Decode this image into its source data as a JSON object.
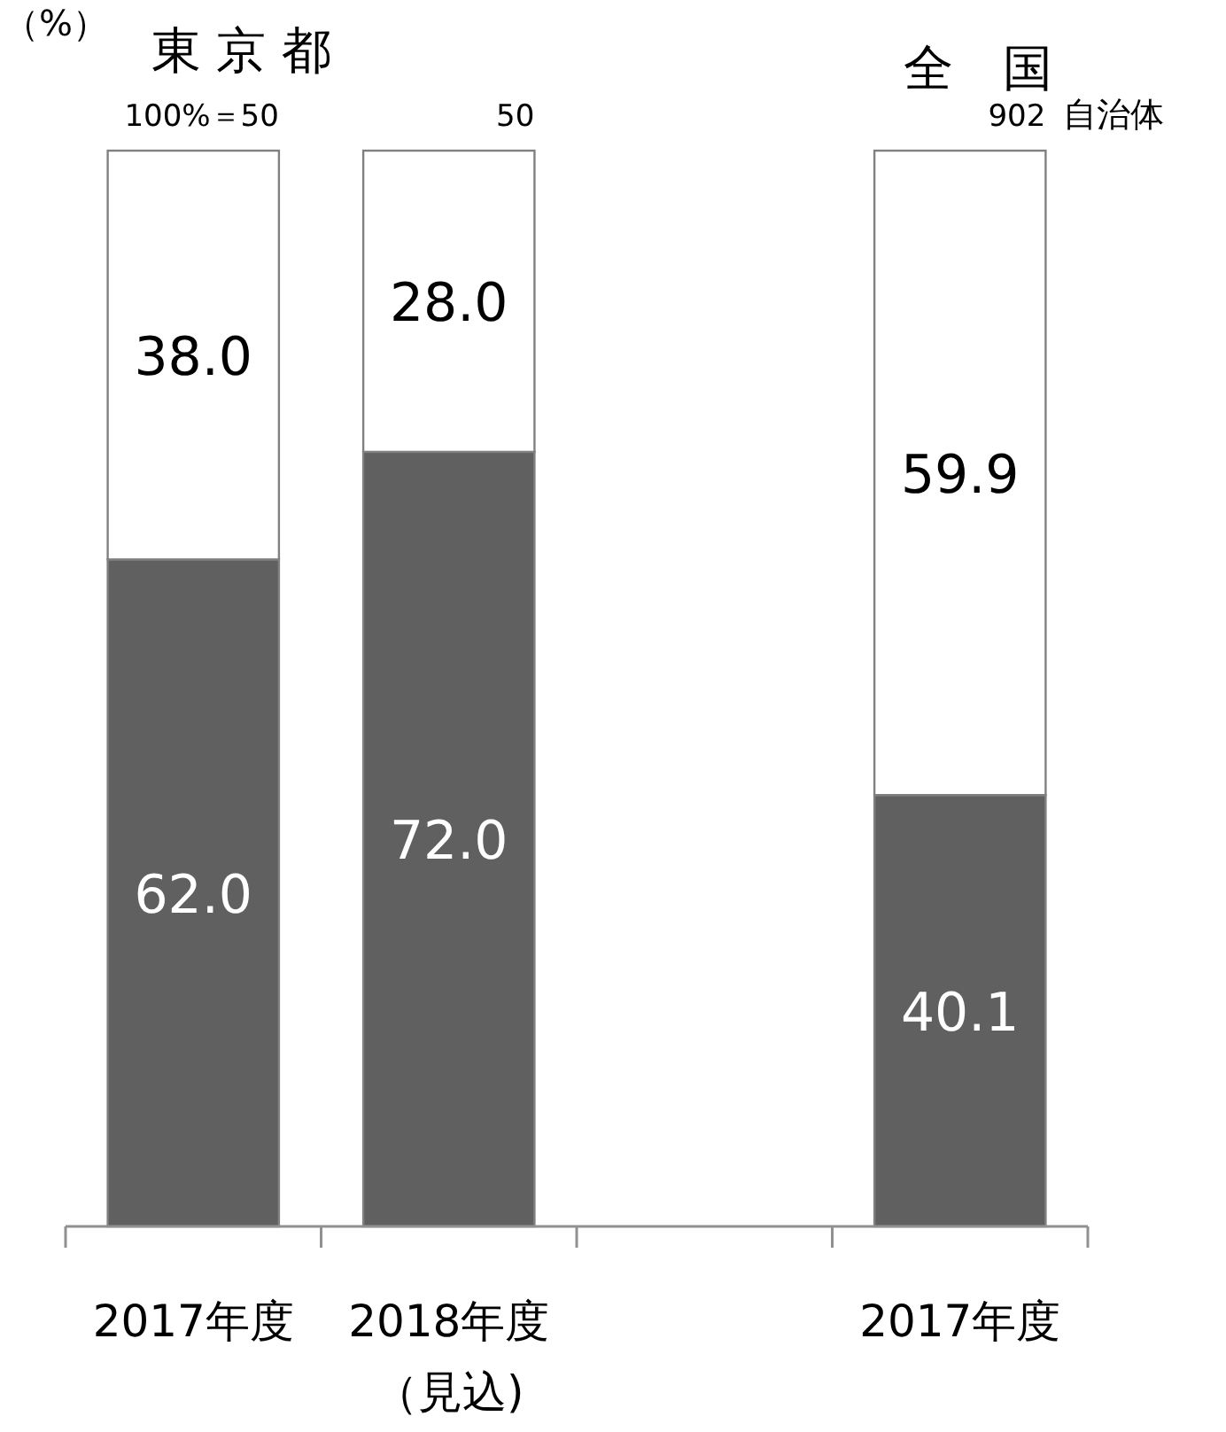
{
  "chart_data": {
    "type": "bar",
    "stacked": true,
    "ylabel": "（%）",
    "categories": [
      "2017年度",
      "2018年度（見込)",
      null,
      "2017年度"
    ],
    "series": [
      {
        "color": "#606060",
        "values": [
          62.0,
          72.0,
          null,
          40.1
        ],
        "value_labels": [
          "62.0",
          "72.0",
          null,
          "40.1"
        ]
      },
      {
        "color": "#ffffff",
        "values": [
          38.0,
          28.0,
          null,
          59.9
        ],
        "value_labels": [
          "38.0",
          "28.0",
          null,
          "59.9"
        ]
      }
    ],
    "ylim": [
      0,
      100
    ],
    "tick_labels": "x",
    "annotations": [
      "東 京 都",
      "全　国",
      "自治体",
      "100%＝50",
      "50",
      "902"
    ]
  }
}
